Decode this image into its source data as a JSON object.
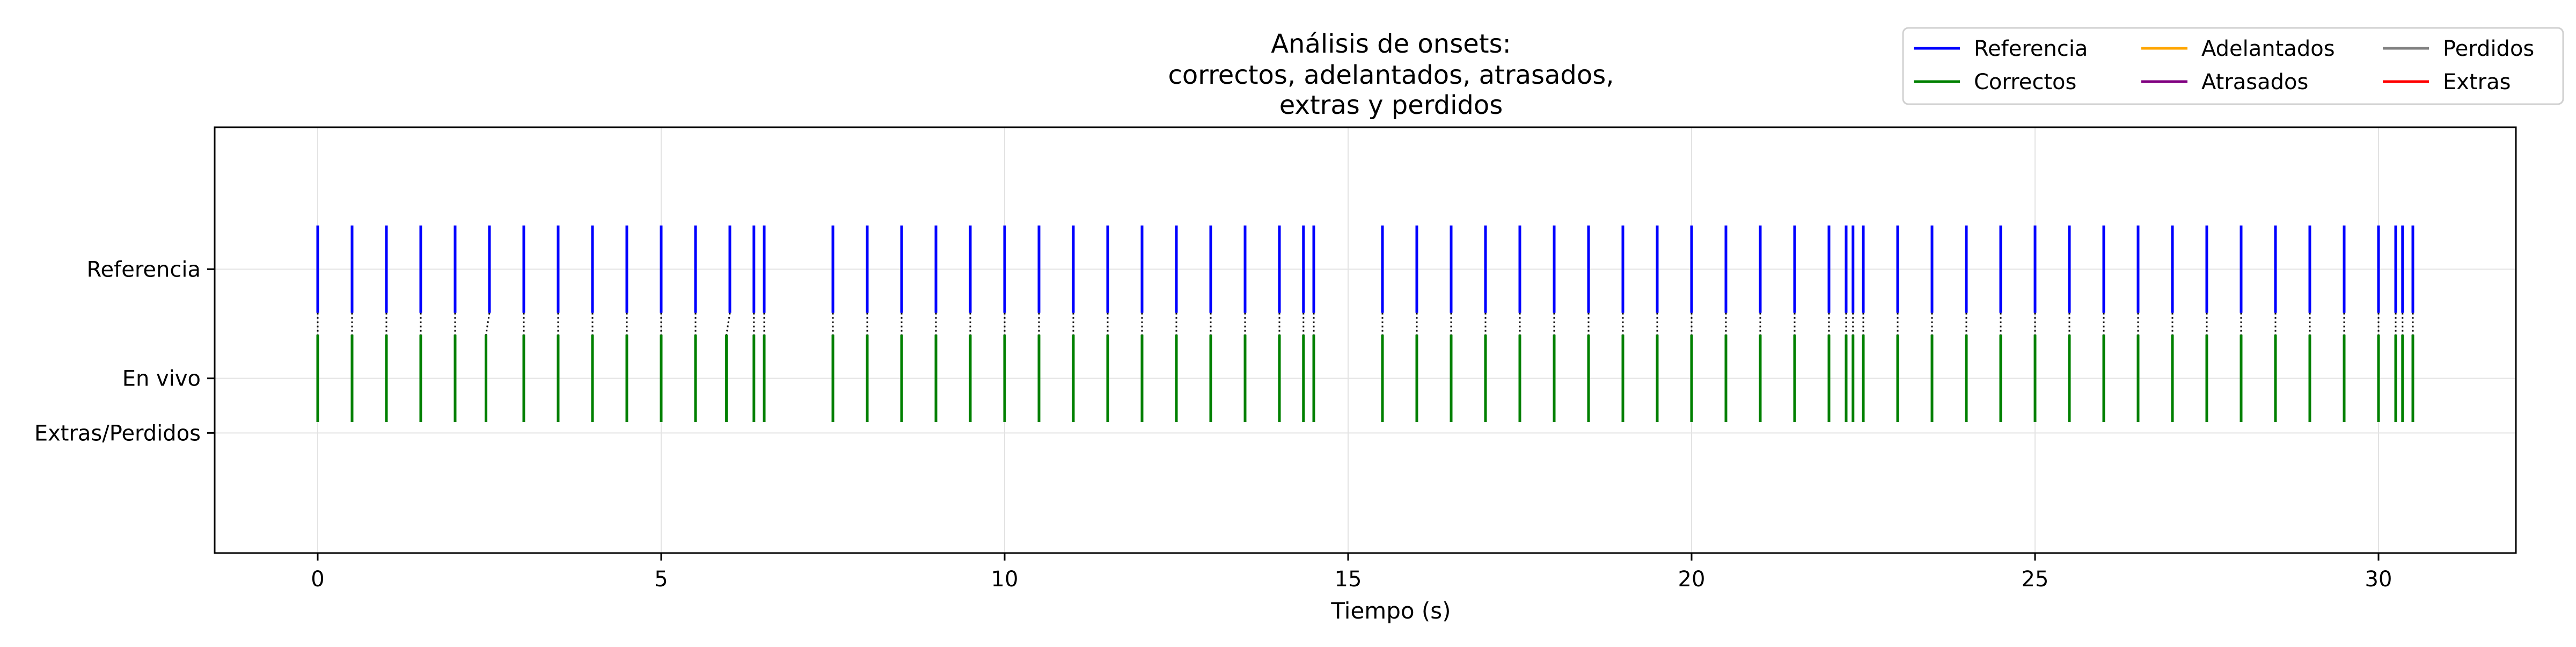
{
  "chart_data": {
    "type": "event-plot",
    "title_lines": [
      "Análisis de onsets:",
      "correctos, adelantados, atrasados,",
      "extras y perdidos"
    ],
    "xlabel": "Tiempo (s)",
    "xlim": [
      -1.5,
      32.0
    ],
    "xticks": [
      0,
      5,
      10,
      15,
      20,
      25,
      30
    ],
    "xtick_labels": [
      "0",
      "5",
      "10",
      "15",
      "20",
      "25",
      "30"
    ],
    "ylim": [
      -2.6,
      1.3
    ],
    "yticks": [
      {
        "value": 0.0,
        "label": "Referencia"
      },
      {
        "value": -1.0,
        "label": "En vivo"
      },
      {
        "value": -1.5,
        "label": "Extras/Perdidos"
      }
    ],
    "grid": true,
    "legend_location": "top-right, above plot",
    "legend_entries": [
      {
        "label": "Referencia",
        "color": "#0000ff"
      },
      {
        "label": "Correctos",
        "color": "#008000"
      },
      {
        "label": "Adelantados",
        "color": "#ffa500"
      },
      {
        "label": "Atrasados",
        "color": "#800080"
      },
      {
        "label": "Perdidos",
        "color": "#808080"
      },
      {
        "label": "Extras",
        "color": "#ff0000"
      }
    ],
    "reference_bar": {
      "y_from": -0.4,
      "y_to": 0.4
    },
    "correct_bar": {
      "y_from": -1.4,
      "y_to": -0.6
    },
    "connector": {
      "y_from": -0.4,
      "y_to": -0.6,
      "color": "#000000",
      "style": "dotted"
    },
    "series": [
      {
        "name": "Referencia",
        "color": "#0000ff",
        "x": [
          0.0,
          0.5,
          1.0,
          1.5,
          2.0,
          2.5,
          3.0,
          3.5,
          4.0,
          4.5,
          5.0,
          5.5,
          6.0,
          6.35,
          6.5,
          7.5,
          8.0,
          8.5,
          9.0,
          9.5,
          10.0,
          10.5,
          11.0,
          11.5,
          12.0,
          12.5,
          13.0,
          13.5,
          14.0,
          14.35,
          14.5,
          15.5,
          16.0,
          16.5,
          17.0,
          17.5,
          18.0,
          18.5,
          19.0,
          19.5,
          20.0,
          20.5,
          21.0,
          21.5,
          22.0,
          22.25,
          22.35,
          22.5,
          23.0,
          23.5,
          24.0,
          24.5,
          25.0,
          25.5,
          26.0,
          26.5,
          27.0,
          27.5,
          28.0,
          28.5,
          29.0,
          29.5,
          30.0,
          30.25,
          30.35,
          30.5
        ]
      },
      {
        "name": "Correctos",
        "color": "#008000",
        "x": [
          0.0,
          0.5,
          1.0,
          1.5,
          2.0,
          2.45,
          3.0,
          3.5,
          4.0,
          4.5,
          5.0,
          5.5,
          5.95,
          6.35,
          6.5,
          7.5,
          8.0,
          8.5,
          9.0,
          9.5,
          10.0,
          10.5,
          11.0,
          11.5,
          12.0,
          12.5,
          13.0,
          13.5,
          14.0,
          14.35,
          14.5,
          15.5,
          16.0,
          16.5,
          17.0,
          17.5,
          18.0,
          18.5,
          19.0,
          19.5,
          20.0,
          20.5,
          21.0,
          21.5,
          22.0,
          22.25,
          22.35,
          22.5,
          23.0,
          23.5,
          24.0,
          24.5,
          25.0,
          25.5,
          26.0,
          26.5,
          27.0,
          27.5,
          28.0,
          28.5,
          29.0,
          29.5,
          30.0,
          30.25,
          30.35,
          30.5
        ]
      },
      {
        "name": "Adelantados",
        "color": "#ffa500",
        "x": []
      },
      {
        "name": "Atrasados",
        "color": "#800080",
        "x": []
      },
      {
        "name": "Perdidos",
        "color": "#808080",
        "x": []
      },
      {
        "name": "Extras",
        "color": "#ff0000",
        "x": []
      }
    ]
  }
}
